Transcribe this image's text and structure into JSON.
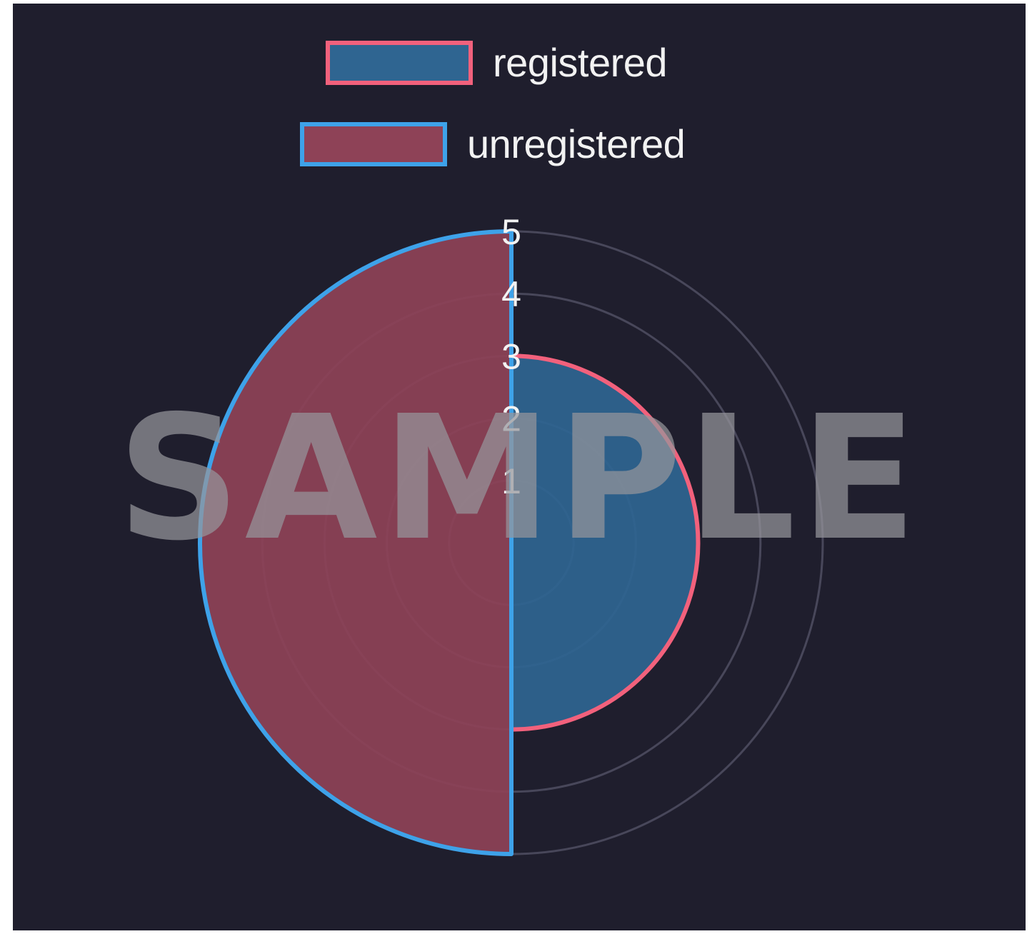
{
  "chart_data": {
    "type": "polarArea",
    "series": [
      {
        "name": "registered",
        "value": 3,
        "fill": "#2f6591",
        "stroke": "#f2617c"
      },
      {
        "name": "unregistered",
        "value": 5,
        "fill": "#8e4257",
        "stroke": "#3ea2e9"
      }
    ],
    "r_ticks": [
      "1",
      "2",
      "3",
      "4",
      "5"
    ],
    "r_range": [
      0,
      5
    ],
    "grid": true,
    "legend_position": "top"
  },
  "colors": {
    "background": "#1f1e2d",
    "grid": "#48475a"
  },
  "watermark": "SAMPLE"
}
